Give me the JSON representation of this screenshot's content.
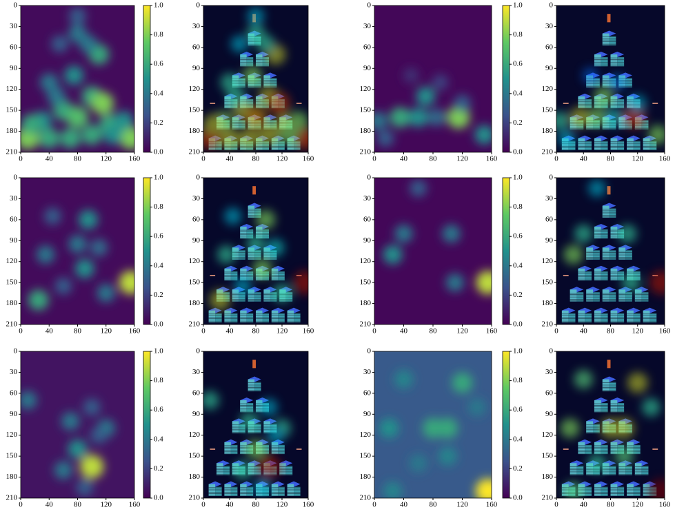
{
  "chart_data": [
    {
      "type": "heatmap",
      "xlim": [
        0,
        160
      ],
      "ylim": [
        210,
        0
      ],
      "xticks": [
        0,
        40,
        80,
        120,
        160
      ],
      "yticks": [
        0,
        30,
        60,
        90,
        120,
        150,
        180,
        210
      ],
      "colorbar": {
        "lim": [
          0,
          1
        ],
        "ticks": [
          {
            "value": 0,
            "label": "0.0"
          },
          0.2,
          0.4,
          0.6,
          0.8,
          {
            "value": 1,
            "label": "1.0"
          }
        ]
      },
      "background": 0.03,
      "hotspots": [
        {
          "x": 110,
          "y": 70,
          "v": 0.6
        },
        {
          "x": 40,
          "y": 110,
          "v": 0.4
        },
        {
          "x": 75,
          "y": 100,
          "v": 0.5
        },
        {
          "x": 100,
          "y": 130,
          "v": 0.6
        },
        {
          "x": 115,
          "y": 140,
          "v": 0.8
        },
        {
          "x": 60,
          "y": 150,
          "v": 0.6
        },
        {
          "x": 80,
          "y": 160,
          "v": 0.7
        },
        {
          "x": 30,
          "y": 165,
          "v": 0.5
        },
        {
          "x": 125,
          "y": 170,
          "v": 0.6
        },
        {
          "x": 10,
          "y": 190,
          "v": 0.8
        },
        {
          "x": 40,
          "y": 190,
          "v": 0.6
        },
        {
          "x": 70,
          "y": 190,
          "v": 0.6
        },
        {
          "x": 100,
          "y": 185,
          "v": 0.6
        },
        {
          "x": 155,
          "y": 190,
          "v": 0.8
        },
        {
          "x": 55,
          "y": 55,
          "v": 0.3
        },
        {
          "x": 95,
          "y": 55,
          "v": 0.4
        },
        {
          "x": 15,
          "y": 170,
          "v": 0.6
        },
        {
          "x": 145,
          "y": 165,
          "v": 0.5
        },
        {
          "x": 130,
          "y": 185,
          "v": 0.5
        },
        {
          "x": 50,
          "y": 130,
          "v": 0.4
        },
        {
          "x": 80,
          "y": 15,
          "v": 0.3
        },
        {
          "x": 80,
          "y": 40,
          "v": 0.4
        }
      ]
    },
    {
      "type": "heatmap",
      "xlim": [
        0,
        160
      ],
      "ylim": [
        210,
        0
      ],
      "xticks": [
        0,
        40,
        80,
        120,
        160
      ],
      "yticks": [
        0,
        30,
        60,
        90,
        120,
        150,
        180,
        210
      ],
      "colorbar": {
        "lim": [
          0,
          1
        ],
        "ticks": [
          {
            "value": 0,
            "label": "0.0"
          },
          0.2,
          0.4,
          0.6,
          0.8,
          {
            "value": 1,
            "label": "1.0"
          }
        ]
      },
      "background": 0.02,
      "hotspots": [
        {
          "x": 70,
          "y": 130,
          "v": 0.5
        },
        {
          "x": 35,
          "y": 160,
          "v": 0.6
        },
        {
          "x": 60,
          "y": 160,
          "v": 0.5
        },
        {
          "x": 115,
          "y": 160,
          "v": 0.8
        },
        {
          "x": 150,
          "y": 185,
          "v": 0.5
        },
        {
          "x": 15,
          "y": 190,
          "v": 0.3
        },
        {
          "x": 90,
          "y": 110,
          "v": 0.2
        },
        {
          "x": 120,
          "y": 140,
          "v": 0.3
        },
        {
          "x": 5,
          "y": 165,
          "v": 0.4
        },
        {
          "x": 50,
          "y": 100,
          "v": 0.15
        },
        {
          "x": 85,
          "y": 160,
          "v": 0.35
        }
      ]
    },
    {
      "type": "heatmap",
      "xlim": [
        0,
        160
      ],
      "ylim": [
        210,
        0
      ],
      "xticks": [
        0,
        40,
        80,
        120,
        160
      ],
      "yticks": [
        0,
        30,
        60,
        90,
        120,
        150,
        180,
        210
      ],
      "colorbar": {
        "lim": [
          0,
          1
        ],
        "ticks": [
          {
            "value": 0,
            "label": "0.0"
          },
          0.2,
          0.4,
          0.6,
          0.8,
          {
            "value": 1,
            "label": "1.0"
          }
        ]
      },
      "background": 0.03,
      "hotspots": [
        {
          "x": 155,
          "y": 150,
          "v": 0.9
        },
        {
          "x": 25,
          "y": 175,
          "v": 0.6
        },
        {
          "x": 95,
          "y": 60,
          "v": 0.5
        },
        {
          "x": 35,
          "y": 110,
          "v": 0.4
        },
        {
          "x": 90,
          "y": 130,
          "v": 0.5
        },
        {
          "x": 120,
          "y": 165,
          "v": 0.4
        },
        {
          "x": 80,
          "y": 95,
          "v": 0.4
        },
        {
          "x": 60,
          "y": 155,
          "v": 0.3
        },
        {
          "x": 45,
          "y": 55,
          "v": 0.3
        },
        {
          "x": 110,
          "y": 100,
          "v": 0.35
        }
      ]
    },
    {
      "type": "heatmap",
      "xlim": [
        0,
        160
      ],
      "ylim": [
        210,
        0
      ],
      "xticks": [
        0,
        40,
        80,
        120,
        160
      ],
      "yticks": [
        0,
        30,
        60,
        90,
        120,
        150,
        180,
        210
      ],
      "colorbar": {
        "lim": [
          0,
          1
        ],
        "ticks": [
          {
            "value": 0,
            "label": "0.0"
          },
          0.2,
          0.4,
          0.6,
          0.8,
          {
            "value": 1,
            "label": "1.0"
          }
        ]
      },
      "background": 0.02,
      "hotspots": [
        {
          "x": 25,
          "y": 110,
          "v": 0.5
        },
        {
          "x": 40,
          "y": 80,
          "v": 0.4
        },
        {
          "x": 155,
          "y": 150,
          "v": 0.9
        },
        {
          "x": 105,
          "y": 80,
          "v": 0.4
        },
        {
          "x": 110,
          "y": 150,
          "v": 0.4
        },
        {
          "x": 60,
          "y": 15,
          "v": 0.3
        }
      ]
    },
    {
      "type": "heatmap",
      "xlim": [
        0,
        160
      ],
      "ylim": [
        210,
        0
      ],
      "xticks": [
        0,
        40,
        80,
        120,
        160
      ],
      "yticks": [
        0,
        30,
        60,
        90,
        120,
        150,
        180,
        210
      ],
      "colorbar": {
        "lim": [
          0,
          1
        ],
        "ticks": [
          {
            "value": 0,
            "label": "0.0"
          },
          0.2,
          0.4,
          0.6,
          0.8,
          {
            "value": 1,
            "label": "1.0"
          }
        ]
      },
      "background": 0.06,
      "hotspots": [
        {
          "x": 100,
          "y": 165,
          "v": 0.9
        },
        {
          "x": 80,
          "y": 140,
          "v": 0.5
        },
        {
          "x": 70,
          "y": 100,
          "v": 0.4
        },
        {
          "x": 120,
          "y": 110,
          "v": 0.4
        },
        {
          "x": 10,
          "y": 70,
          "v": 0.4
        },
        {
          "x": 60,
          "y": 170,
          "v": 0.4
        },
        {
          "x": 90,
          "y": 195,
          "v": 0.3
        },
        {
          "x": 110,
          "y": 120,
          "v": 0.3
        },
        {
          "x": 100,
          "y": 80,
          "v": 0.3
        }
      ]
    },
    {
      "type": "heatmap",
      "xlim": [
        0,
        160
      ],
      "ylim": [
        210,
        0
      ],
      "xticks": [
        0,
        40,
        80,
        120,
        160
      ],
      "yticks": [
        0,
        30,
        60,
        90,
        120,
        150,
        180,
        210
      ],
      "colorbar": {
        "lim": [
          0,
          1
        ],
        "ticks": [
          {
            "value": 0,
            "label": "0.0"
          },
          0.2,
          0.4,
          0.6,
          0.8,
          {
            "value": 1,
            "label": "1.0"
          }
        ]
      },
      "background": 0.28,
      "hotspots": [
        {
          "x": 155,
          "y": 200,
          "v": 1.0
        },
        {
          "x": 120,
          "y": 45,
          "v": 0.6
        },
        {
          "x": 80,
          "y": 110,
          "v": 0.6
        },
        {
          "x": 20,
          "y": 110,
          "v": 0.5
        },
        {
          "x": 40,
          "y": 40,
          "v": 0.45
        },
        {
          "x": 100,
          "y": 150,
          "v": 0.45
        },
        {
          "x": 140,
          "y": 80,
          "v": 0.4
        },
        {
          "x": 60,
          "y": 160,
          "v": 0.4
        },
        {
          "x": 25,
          "y": 200,
          "v": 0.45
        },
        {
          "x": 100,
          "y": 110,
          "v": 0.6
        }
      ]
    }
  ]
}
